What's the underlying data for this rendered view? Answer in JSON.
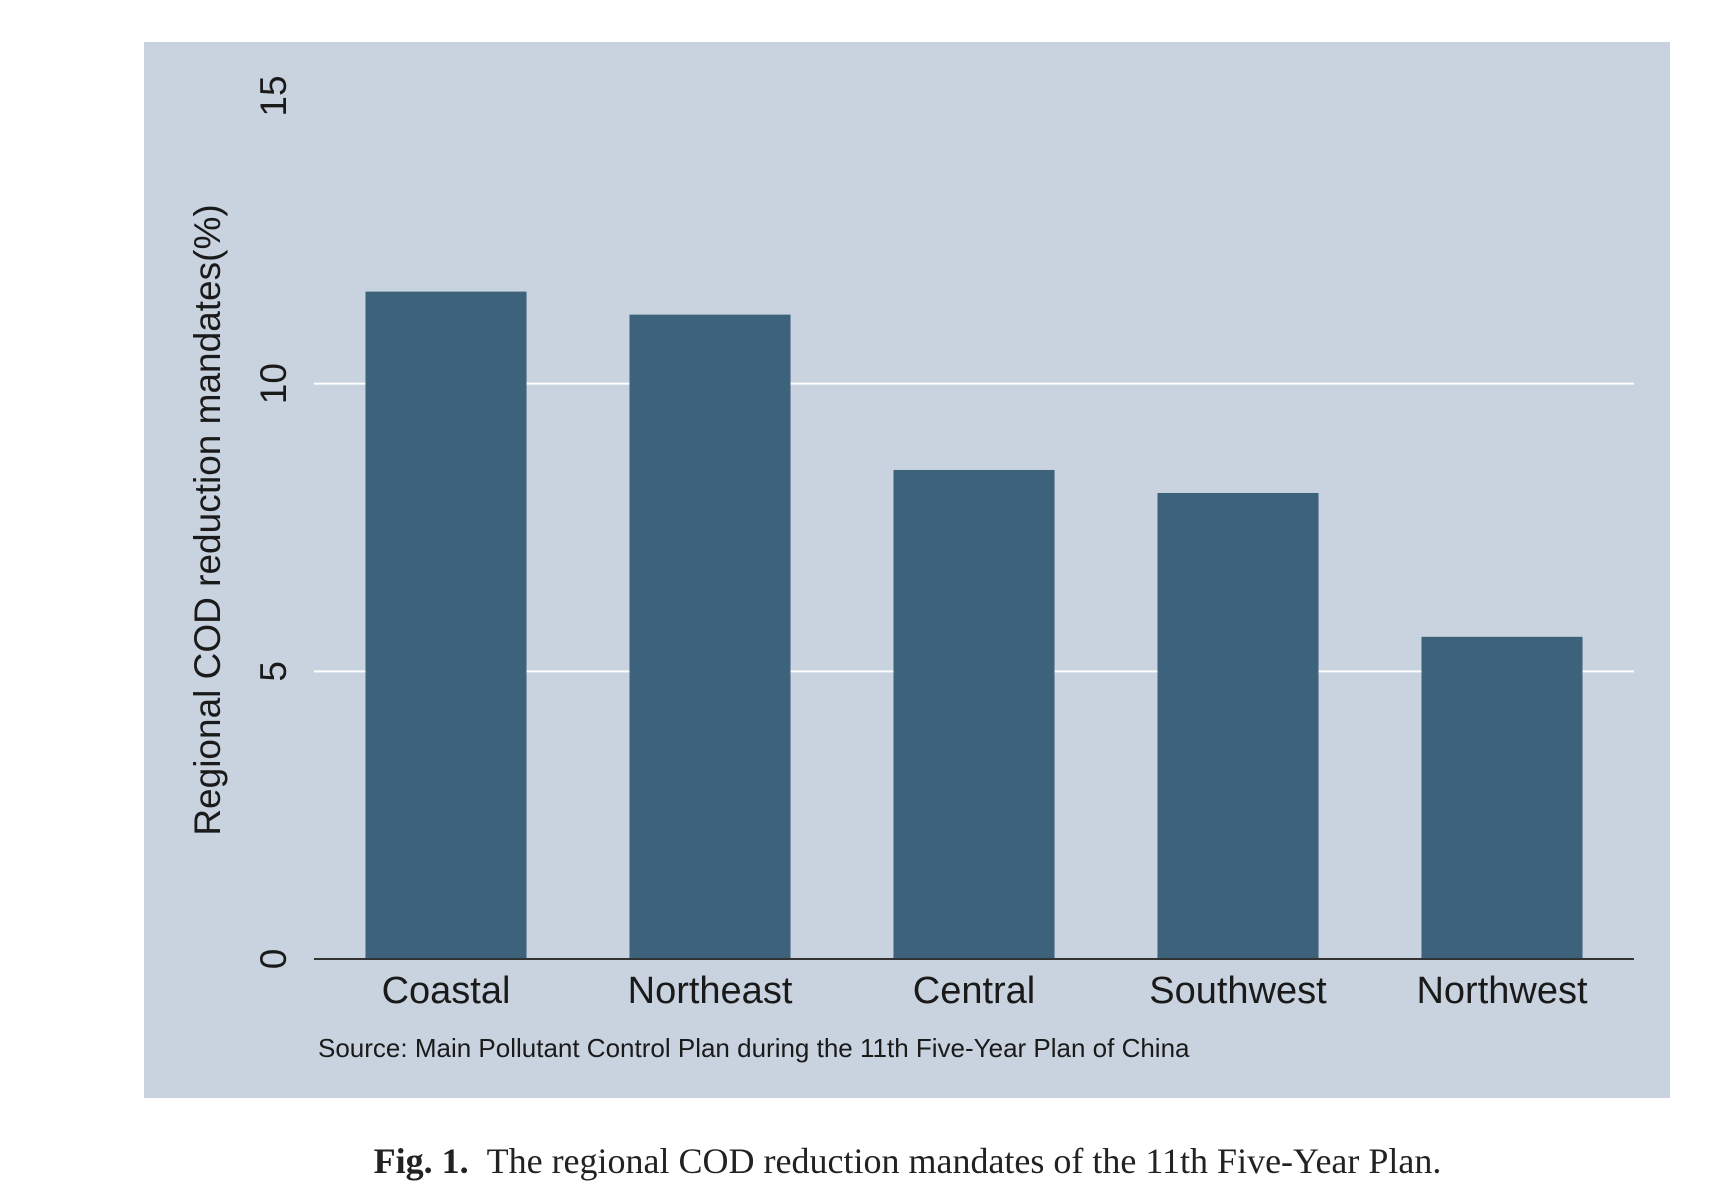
{
  "chart_data": {
    "type": "bar",
    "categories": [
      "Coastal",
      "Northeast",
      "Central",
      "Southwest",
      "Northwest"
    ],
    "values": [
      11.6,
      11.2,
      8.5,
      8.1,
      5.6
    ],
    "ylabel": "Regional COD reduction mandates(%)",
    "ylim": [
      0,
      15
    ],
    "yticks": [
      0,
      5,
      10,
      15
    ],
    "source_note": "Source: Main Pollutant Control Plan during the 11th Five-Year Plan of China",
    "grid": true,
    "colors": {
      "background": "#c8d3df",
      "bar": "#3d627c",
      "gridline": "#ffffff",
      "axis": "#333333",
      "text": "#1a1a1a"
    }
  },
  "caption": {
    "label": "Fig. 1.",
    "text": "The regional COD reduction mandates of the 11th Five-Year Plan."
  }
}
